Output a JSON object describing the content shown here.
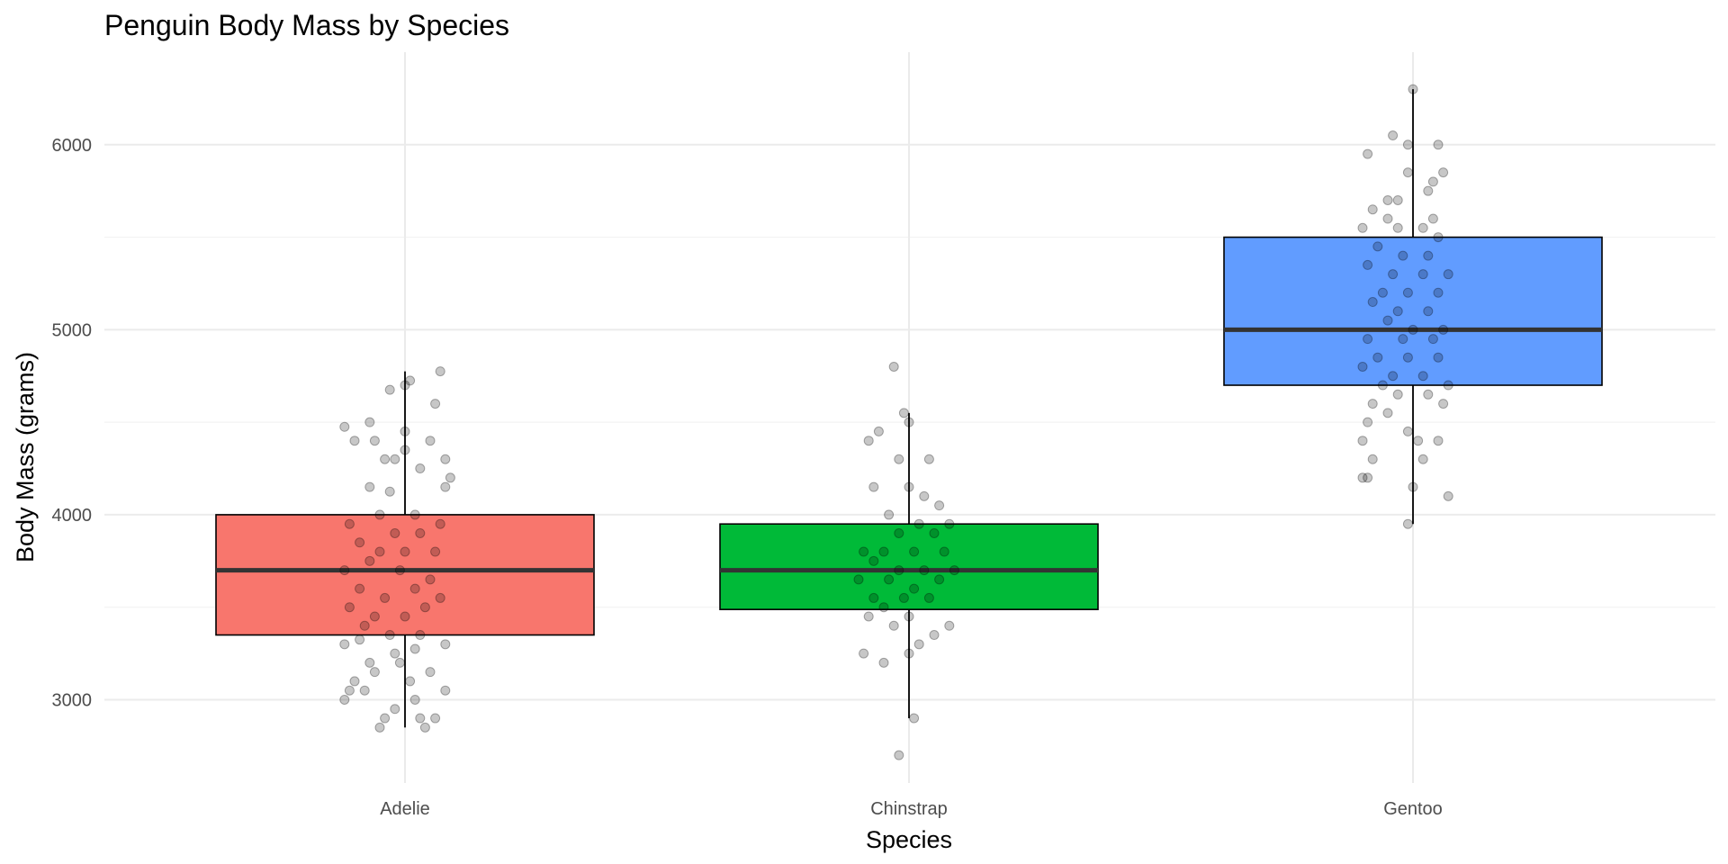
{
  "chart_data": {
    "type": "box",
    "title": "Penguin Body Mass by Species",
    "xlabel": "Species",
    "ylabel": "Body Mass (grams)",
    "categories": [
      "Adelie",
      "Chinstrap",
      "Gentoo"
    ],
    "ylim": [
      2550,
      6500
    ],
    "yticks": [
      3000,
      4000,
      5000,
      6000
    ],
    "grid": true,
    "legend": "none",
    "boxes": [
      {
        "name": "Adelie",
        "color": "#F8766D",
        "min": 2850,
        "q1": 3350,
        "median": 3700,
        "q3": 4000,
        "max": 4775
      },
      {
        "name": "Chinstrap",
        "color": "#00BA38",
        "min": 2900,
        "q1": 3488,
        "median": 3700,
        "q3": 3950,
        "max": 4550
      },
      {
        "name": "Gentoo",
        "color": "#619CFF",
        "min": 3950,
        "q1": 4700,
        "median": 5000,
        "q3": 5500,
        "max": 6300
      }
    ],
    "points": [
      {
        "species": "Adelie",
        "x": 0.88,
        "y": 4475
      },
      {
        "species": "Adelie",
        "x": 0.93,
        "y": 4500
      },
      {
        "species": "Adelie",
        "x": 0.97,
        "y": 4675
      },
      {
        "species": "Adelie",
        "x": 1.0,
        "y": 4700
      },
      {
        "species": "Adelie",
        "x": 1.01,
        "y": 4725
      },
      {
        "species": "Adelie",
        "x": 1.07,
        "y": 4775
      },
      {
        "species": "Adelie",
        "x": 1.06,
        "y": 4600
      },
      {
        "species": "Adelie",
        "x": 0.9,
        "y": 4400
      },
      {
        "species": "Adelie",
        "x": 0.94,
        "y": 4400
      },
      {
        "species": "Adelie",
        "x": 1.0,
        "y": 4450
      },
      {
        "species": "Adelie",
        "x": 1.05,
        "y": 4400
      },
      {
        "species": "Adelie",
        "x": 1.0,
        "y": 4350
      },
      {
        "species": "Adelie",
        "x": 0.96,
        "y": 4300
      },
      {
        "species": "Adelie",
        "x": 0.98,
        "y": 4300
      },
      {
        "species": "Adelie",
        "x": 1.08,
        "y": 4300
      },
      {
        "species": "Adelie",
        "x": 1.03,
        "y": 4250
      },
      {
        "species": "Adelie",
        "x": 1.09,
        "y": 4200
      },
      {
        "species": "Adelie",
        "x": 1.08,
        "y": 4150
      },
      {
        "species": "Adelie",
        "x": 0.93,
        "y": 4150
      },
      {
        "species": "Adelie",
        "x": 0.97,
        "y": 4125
      },
      {
        "species": "Adelie",
        "x": 0.95,
        "y": 4000
      },
      {
        "species": "Adelie",
        "x": 1.02,
        "y": 4000
      },
      {
        "species": "Adelie",
        "x": 0.89,
        "y": 3950
      },
      {
        "species": "Adelie",
        "x": 0.98,
        "y": 3900
      },
      {
        "species": "Adelie",
        "x": 1.07,
        "y": 3950
      },
      {
        "species": "Adelie",
        "x": 1.03,
        "y": 3900
      },
      {
        "species": "Adelie",
        "x": 0.91,
        "y": 3850
      },
      {
        "species": "Adelie",
        "x": 0.95,
        "y": 3800
      },
      {
        "species": "Adelie",
        "x": 1.0,
        "y": 3800
      },
      {
        "species": "Adelie",
        "x": 1.06,
        "y": 3800
      },
      {
        "species": "Adelie",
        "x": 0.88,
        "y": 3700
      },
      {
        "species": "Adelie",
        "x": 0.93,
        "y": 3750
      },
      {
        "species": "Adelie",
        "x": 0.99,
        "y": 3700
      },
      {
        "species": "Adelie",
        "x": 1.05,
        "y": 3650
      },
      {
        "species": "Adelie",
        "x": 0.91,
        "y": 3600
      },
      {
        "species": "Adelie",
        "x": 0.96,
        "y": 3550
      },
      {
        "species": "Adelie",
        "x": 1.02,
        "y": 3600
      },
      {
        "species": "Adelie",
        "x": 1.07,
        "y": 3550
      },
      {
        "species": "Adelie",
        "x": 0.89,
        "y": 3500
      },
      {
        "species": "Adelie",
        "x": 0.94,
        "y": 3450
      },
      {
        "species": "Adelie",
        "x": 1.0,
        "y": 3450
      },
      {
        "species": "Adelie",
        "x": 1.04,
        "y": 3500
      },
      {
        "species": "Adelie",
        "x": 0.92,
        "y": 3400
      },
      {
        "species": "Adelie",
        "x": 0.97,
        "y": 3350
      },
      {
        "species": "Adelie",
        "x": 1.03,
        "y": 3350
      },
      {
        "species": "Adelie",
        "x": 0.88,
        "y": 3300
      },
      {
        "species": "Adelie",
        "x": 0.91,
        "y": 3325
      },
      {
        "species": "Adelie",
        "x": 1.08,
        "y": 3300
      },
      {
        "species": "Adelie",
        "x": 0.98,
        "y": 3250
      },
      {
        "species": "Adelie",
        "x": 1.02,
        "y": 3275
      },
      {
        "species": "Adelie",
        "x": 0.93,
        "y": 3200
      },
      {
        "species": "Adelie",
        "x": 0.99,
        "y": 3200
      },
      {
        "species": "Adelie",
        "x": 1.05,
        "y": 3150
      },
      {
        "species": "Adelie",
        "x": 0.9,
        "y": 3100
      },
      {
        "species": "Adelie",
        "x": 0.94,
        "y": 3150
      },
      {
        "species": "Adelie",
        "x": 1.01,
        "y": 3100
      },
      {
        "species": "Adelie",
        "x": 0.89,
        "y": 3050
      },
      {
        "species": "Adelie",
        "x": 0.92,
        "y": 3050
      },
      {
        "species": "Adelie",
        "x": 1.08,
        "y": 3050
      },
      {
        "species": "Adelie",
        "x": 0.88,
        "y": 3000
      },
      {
        "species": "Adelie",
        "x": 1.02,
        "y": 3000
      },
      {
        "species": "Adelie",
        "x": 0.98,
        "y": 2950
      },
      {
        "species": "Adelie",
        "x": 0.96,
        "y": 2900
      },
      {
        "species": "Adelie",
        "x": 1.03,
        "y": 2900
      },
      {
        "species": "Adelie",
        "x": 1.06,
        "y": 2900
      },
      {
        "species": "Adelie",
        "x": 0.95,
        "y": 2850
      },
      {
        "species": "Adelie",
        "x": 1.04,
        "y": 2850
      },
      {
        "species": "Chinstrap",
        "x": 1.92,
        "y": 4400
      },
      {
        "species": "Chinstrap",
        "x": 1.94,
        "y": 4450
      },
      {
        "species": "Chinstrap",
        "x": 1.99,
        "y": 4550
      },
      {
        "species": "Chinstrap",
        "x": 2.0,
        "y": 4500
      },
      {
        "species": "Chinstrap",
        "x": 1.97,
        "y": 4800
      },
      {
        "species": "Chinstrap",
        "x": 1.98,
        "y": 4300
      },
      {
        "species": "Chinstrap",
        "x": 2.04,
        "y": 4300
      },
      {
        "species": "Chinstrap",
        "x": 1.93,
        "y": 4150
      },
      {
        "species": "Chinstrap",
        "x": 2.0,
        "y": 4150
      },
      {
        "species": "Chinstrap",
        "x": 2.06,
        "y": 4050
      },
      {
        "species": "Chinstrap",
        "x": 2.03,
        "y": 4100
      },
      {
        "species": "Chinstrap",
        "x": 1.96,
        "y": 4000
      },
      {
        "species": "Chinstrap",
        "x": 2.02,
        "y": 3950
      },
      {
        "species": "Chinstrap",
        "x": 2.08,
        "y": 3950
      },
      {
        "species": "Chinstrap",
        "x": 1.98,
        "y": 3900
      },
      {
        "species": "Chinstrap",
        "x": 2.05,
        "y": 3900
      },
      {
        "species": "Chinstrap",
        "x": 1.91,
        "y": 3800
      },
      {
        "species": "Chinstrap",
        "x": 1.95,
        "y": 3800
      },
      {
        "species": "Chinstrap",
        "x": 2.01,
        "y": 3800
      },
      {
        "species": "Chinstrap",
        "x": 2.07,
        "y": 3800
      },
      {
        "species": "Chinstrap",
        "x": 1.93,
        "y": 3750
      },
      {
        "species": "Chinstrap",
        "x": 1.98,
        "y": 3700
      },
      {
        "species": "Chinstrap",
        "x": 2.03,
        "y": 3700
      },
      {
        "species": "Chinstrap",
        "x": 2.09,
        "y": 3700
      },
      {
        "species": "Chinstrap",
        "x": 1.9,
        "y": 3650
      },
      {
        "species": "Chinstrap",
        "x": 1.96,
        "y": 3650
      },
      {
        "species": "Chinstrap",
        "x": 2.01,
        "y": 3600
      },
      {
        "species": "Chinstrap",
        "x": 2.06,
        "y": 3650
      },
      {
        "species": "Chinstrap",
        "x": 1.93,
        "y": 3550
      },
      {
        "species": "Chinstrap",
        "x": 1.99,
        "y": 3550
      },
      {
        "species": "Chinstrap",
        "x": 2.04,
        "y": 3550
      },
      {
        "species": "Chinstrap",
        "x": 1.95,
        "y": 3500
      },
      {
        "species": "Chinstrap",
        "x": 2.0,
        "y": 3450
      },
      {
        "species": "Chinstrap",
        "x": 1.92,
        "y": 3450
      },
      {
        "species": "Chinstrap",
        "x": 2.08,
        "y": 3400
      },
      {
        "species": "Chinstrap",
        "x": 1.97,
        "y": 3400
      },
      {
        "species": "Chinstrap",
        "x": 2.05,
        "y": 3350
      },
      {
        "species": "Chinstrap",
        "x": 2.02,
        "y": 3300
      },
      {
        "species": "Chinstrap",
        "x": 2.0,
        "y": 3250
      },
      {
        "species": "Chinstrap",
        "x": 1.91,
        "y": 3250
      },
      {
        "species": "Chinstrap",
        "x": 1.95,
        "y": 3200
      },
      {
        "species": "Chinstrap",
        "x": 2.01,
        "y": 2900
      },
      {
        "species": "Chinstrap",
        "x": 1.98,
        "y": 2700
      },
      {
        "species": "Gentoo",
        "x": 3.0,
        "y": 6300
      },
      {
        "species": "Gentoo",
        "x": 2.96,
        "y": 6050
      },
      {
        "species": "Gentoo",
        "x": 2.99,
        "y": 6000
      },
      {
        "species": "Gentoo",
        "x": 3.05,
        "y": 6000
      },
      {
        "species": "Gentoo",
        "x": 2.91,
        "y": 5950
      },
      {
        "species": "Gentoo",
        "x": 2.99,
        "y": 5850
      },
      {
        "species": "Gentoo",
        "x": 3.06,
        "y": 5850
      },
      {
        "species": "Gentoo",
        "x": 3.04,
        "y": 5800
      },
      {
        "species": "Gentoo",
        "x": 3.03,
        "y": 5750
      },
      {
        "species": "Gentoo",
        "x": 2.95,
        "y": 5700
      },
      {
        "species": "Gentoo",
        "x": 2.97,
        "y": 5700
      },
      {
        "species": "Gentoo",
        "x": 2.92,
        "y": 5650
      },
      {
        "species": "Gentoo",
        "x": 2.95,
        "y": 5600
      },
      {
        "species": "Gentoo",
        "x": 3.04,
        "y": 5600
      },
      {
        "species": "Gentoo",
        "x": 2.9,
        "y": 5550
      },
      {
        "species": "Gentoo",
        "x": 2.97,
        "y": 5550
      },
      {
        "species": "Gentoo",
        "x": 3.02,
        "y": 5550
      },
      {
        "species": "Gentoo",
        "x": 3.05,
        "y": 5500
      },
      {
        "species": "Gentoo",
        "x": 2.93,
        "y": 5450
      },
      {
        "species": "Gentoo",
        "x": 2.98,
        "y": 5400
      },
      {
        "species": "Gentoo",
        "x": 3.03,
        "y": 5400
      },
      {
        "species": "Gentoo",
        "x": 2.91,
        "y": 5350
      },
      {
        "species": "Gentoo",
        "x": 2.96,
        "y": 5300
      },
      {
        "species": "Gentoo",
        "x": 3.02,
        "y": 5300
      },
      {
        "species": "Gentoo",
        "x": 3.07,
        "y": 5300
      },
      {
        "species": "Gentoo",
        "x": 2.94,
        "y": 5200
      },
      {
        "species": "Gentoo",
        "x": 2.99,
        "y": 5200
      },
      {
        "species": "Gentoo",
        "x": 3.05,
        "y": 5200
      },
      {
        "species": "Gentoo",
        "x": 2.92,
        "y": 5150
      },
      {
        "species": "Gentoo",
        "x": 2.97,
        "y": 5100
      },
      {
        "species": "Gentoo",
        "x": 3.03,
        "y": 5100
      },
      {
        "species": "Gentoo",
        "x": 2.95,
        "y": 5050
      },
      {
        "species": "Gentoo",
        "x": 3.0,
        "y": 5000
      },
      {
        "species": "Gentoo",
        "x": 3.06,
        "y": 5000
      },
      {
        "species": "Gentoo",
        "x": 2.91,
        "y": 4950
      },
      {
        "species": "Gentoo",
        "x": 2.98,
        "y": 4950
      },
      {
        "species": "Gentoo",
        "x": 3.04,
        "y": 4950
      },
      {
        "species": "Gentoo",
        "x": 2.93,
        "y": 4850
      },
      {
        "species": "Gentoo",
        "x": 2.99,
        "y": 4850
      },
      {
        "species": "Gentoo",
        "x": 3.05,
        "y": 4850
      },
      {
        "species": "Gentoo",
        "x": 2.9,
        "y": 4800
      },
      {
        "species": "Gentoo",
        "x": 2.96,
        "y": 4750
      },
      {
        "species": "Gentoo",
        "x": 3.02,
        "y": 4750
      },
      {
        "species": "Gentoo",
        "x": 3.07,
        "y": 4700
      },
      {
        "species": "Gentoo",
        "x": 2.94,
        "y": 4700
      },
      {
        "species": "Gentoo",
        "x": 2.97,
        "y": 4650
      },
      {
        "species": "Gentoo",
        "x": 3.03,
        "y": 4650
      },
      {
        "species": "Gentoo",
        "x": 3.06,
        "y": 4600
      },
      {
        "species": "Gentoo",
        "x": 2.92,
        "y": 4600
      },
      {
        "species": "Gentoo",
        "x": 2.95,
        "y": 4550
      },
      {
        "species": "Gentoo",
        "x": 2.91,
        "y": 4500
      },
      {
        "species": "Gentoo",
        "x": 2.99,
        "y": 4450
      },
      {
        "species": "Gentoo",
        "x": 2.9,
        "y": 4400
      },
      {
        "species": "Gentoo",
        "x": 3.01,
        "y": 4400
      },
      {
        "species": "Gentoo",
        "x": 3.05,
        "y": 4400
      },
      {
        "species": "Gentoo",
        "x": 2.92,
        "y": 4300
      },
      {
        "species": "Gentoo",
        "x": 3.02,
        "y": 4300
      },
      {
        "species": "Gentoo",
        "x": 2.9,
        "y": 4200
      },
      {
        "species": "Gentoo",
        "x": 2.91,
        "y": 4200
      },
      {
        "species": "Gentoo",
        "x": 3.0,
        "y": 4150
      },
      {
        "species": "Gentoo",
        "x": 3.07,
        "y": 4100
      },
      {
        "species": "Gentoo",
        "x": 2.99,
        "y": 3950
      }
    ]
  }
}
